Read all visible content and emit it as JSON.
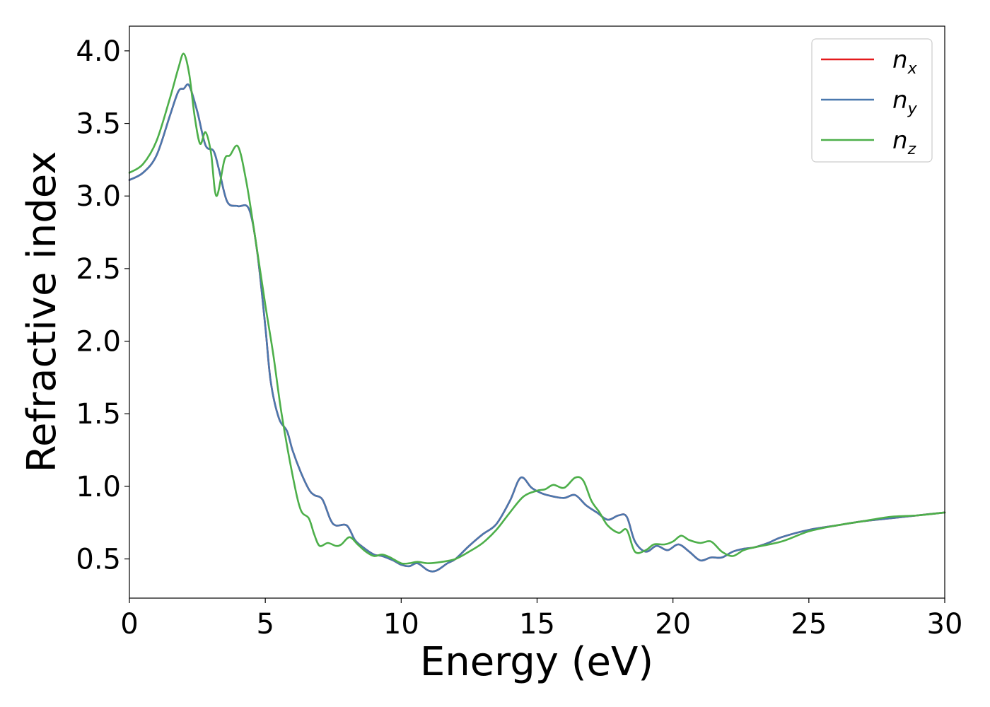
{
  "chart_data": {
    "type": "line",
    "xlabel": "Energy (eV)",
    "ylabel": "Refractive index",
    "xlim": [
      0,
      30
    ],
    "ylim": [
      0.23,
      4.17
    ],
    "xticks": [
      0,
      5,
      10,
      15,
      20,
      25,
      30
    ],
    "yticks": [
      0.5,
      1.0,
      1.5,
      2.0,
      2.5,
      3.0,
      3.5,
      4.0
    ],
    "xtick_labels": [
      "0",
      "5",
      "10",
      "15",
      "20",
      "25",
      "30"
    ],
    "ytick_labels": [
      "0.5",
      "1.0",
      "1.5",
      "2.0",
      "2.5",
      "3.0",
      "3.5",
      "4.0"
    ],
    "grid": false,
    "legend_position": "top-right",
    "series": [
      {
        "name": "n",
        "subscript": "x",
        "color": "#e41a1c",
        "x": [
          0,
          0.5,
          1.0,
          1.5,
          1.8,
          2.0,
          2.2,
          2.5,
          2.8,
          3.1,
          3.3,
          3.6,
          4.0,
          4.4,
          4.7,
          5.0,
          5.2,
          5.5,
          5.8,
          6.0,
          6.3,
          6.6,
          6.8,
          7.1,
          7.4,
          7.6,
          8.0,
          8.3,
          8.6,
          9.0,
          9.3,
          9.7,
          10.0,
          10.3,
          10.6,
          11.0,
          11.3,
          11.7,
          12.0,
          12.5,
          13.0,
          13.5,
          14.0,
          14.4,
          14.8,
          15.2,
          15.6,
          16.0,
          16.4,
          16.8,
          17.2,
          17.6,
          18.0,
          18.3,
          18.6,
          19.0,
          19.4,
          19.8,
          20.2,
          20.6,
          21.0,
          21.4,
          21.8,
          22.2,
          22.6,
          23.0,
          23.5,
          24.0,
          25.0,
          26.0,
          27.0,
          28.0,
          29.0,
          30.0
        ],
        "y": [
          3.11,
          3.16,
          3.28,
          3.56,
          3.72,
          3.74,
          3.76,
          3.58,
          3.35,
          3.31,
          3.18,
          2.96,
          2.93,
          2.91,
          2.62,
          2.1,
          1.72,
          1.47,
          1.38,
          1.25,
          1.1,
          0.98,
          0.94,
          0.91,
          0.77,
          0.73,
          0.73,
          0.63,
          0.58,
          0.53,
          0.52,
          0.49,
          0.46,
          0.45,
          0.47,
          0.42,
          0.42,
          0.47,
          0.5,
          0.59,
          0.67,
          0.74,
          0.9,
          1.06,
          0.99,
          0.95,
          0.93,
          0.92,
          0.94,
          0.87,
          0.82,
          0.77,
          0.8,
          0.79,
          0.62,
          0.55,
          0.59,
          0.56,
          0.6,
          0.55,
          0.49,
          0.51,
          0.51,
          0.55,
          0.57,
          0.58,
          0.61,
          0.65,
          0.7,
          0.73,
          0.76,
          0.78,
          0.8,
          0.82
        ]
      },
      {
        "name": "n",
        "subscript": "y",
        "color": "#4a78ae",
        "x": [
          0,
          0.5,
          1.0,
          1.5,
          1.8,
          2.0,
          2.2,
          2.5,
          2.8,
          3.1,
          3.3,
          3.6,
          4.0,
          4.4,
          4.7,
          5.0,
          5.2,
          5.5,
          5.8,
          6.0,
          6.3,
          6.6,
          6.8,
          7.1,
          7.4,
          7.6,
          8.0,
          8.3,
          8.6,
          9.0,
          9.3,
          9.7,
          10.0,
          10.3,
          10.6,
          11.0,
          11.3,
          11.7,
          12.0,
          12.5,
          13.0,
          13.5,
          14.0,
          14.4,
          14.8,
          15.2,
          15.6,
          16.0,
          16.4,
          16.8,
          17.2,
          17.6,
          18.0,
          18.3,
          18.6,
          19.0,
          19.4,
          19.8,
          20.2,
          20.6,
          21.0,
          21.4,
          21.8,
          22.2,
          22.6,
          23.0,
          23.5,
          24.0,
          25.0,
          26.0,
          27.0,
          28.0,
          29.0,
          30.0
        ],
        "y": [
          3.11,
          3.16,
          3.28,
          3.56,
          3.72,
          3.74,
          3.76,
          3.58,
          3.35,
          3.31,
          3.18,
          2.96,
          2.93,
          2.91,
          2.62,
          2.1,
          1.72,
          1.47,
          1.38,
          1.25,
          1.1,
          0.98,
          0.94,
          0.91,
          0.77,
          0.73,
          0.73,
          0.63,
          0.58,
          0.53,
          0.52,
          0.49,
          0.46,
          0.45,
          0.47,
          0.42,
          0.42,
          0.47,
          0.5,
          0.59,
          0.67,
          0.74,
          0.9,
          1.06,
          0.99,
          0.95,
          0.93,
          0.92,
          0.94,
          0.87,
          0.82,
          0.77,
          0.8,
          0.79,
          0.62,
          0.55,
          0.59,
          0.56,
          0.6,
          0.55,
          0.49,
          0.51,
          0.51,
          0.55,
          0.57,
          0.58,
          0.61,
          0.65,
          0.7,
          0.73,
          0.76,
          0.78,
          0.8,
          0.82
        ]
      },
      {
        "name": "n",
        "subscript": "z",
        "color": "#4daf4a",
        "x": [
          0,
          0.5,
          1.0,
          1.5,
          1.8,
          2.0,
          2.2,
          2.4,
          2.6,
          2.8,
          3.0,
          3.2,
          3.5,
          3.7,
          4.0,
          4.3,
          4.6,
          5.0,
          5.3,
          5.6,
          6.0,
          6.3,
          6.6,
          6.8,
          7.0,
          7.3,
          7.6,
          7.8,
          8.1,
          8.4,
          8.7,
          9.0,
          9.3,
          9.6,
          10.0,
          10.3,
          10.6,
          11.0,
          11.5,
          12.0,
          12.5,
          13.0,
          13.5,
          14.0,
          14.5,
          15.0,
          15.3,
          15.6,
          16.0,
          16.4,
          16.7,
          17.0,
          17.3,
          17.6,
          18.0,
          18.3,
          18.6,
          19.0,
          19.3,
          19.7,
          20.0,
          20.3,
          20.6,
          21.0,
          21.4,
          21.8,
          22.2,
          22.6,
          23.0,
          24.0,
          25.0,
          26.0,
          27.0,
          28.0,
          29.0,
          30.0
        ],
        "y": [
          3.16,
          3.22,
          3.38,
          3.68,
          3.88,
          3.98,
          3.84,
          3.55,
          3.36,
          3.44,
          3.3,
          3.0,
          3.25,
          3.28,
          3.34,
          3.1,
          2.75,
          2.25,
          1.9,
          1.5,
          1.08,
          0.84,
          0.78,
          0.67,
          0.59,
          0.61,
          0.59,
          0.6,
          0.65,
          0.6,
          0.55,
          0.52,
          0.53,
          0.51,
          0.47,
          0.47,
          0.48,
          0.47,
          0.48,
          0.5,
          0.55,
          0.61,
          0.7,
          0.82,
          0.93,
          0.97,
          0.98,
          1.01,
          0.99,
          1.06,
          1.04,
          0.9,
          0.82,
          0.73,
          0.68,
          0.7,
          0.55,
          0.56,
          0.6,
          0.6,
          0.62,
          0.66,
          0.63,
          0.61,
          0.62,
          0.55,
          0.52,
          0.56,
          0.58,
          0.62,
          0.69,
          0.73,
          0.76,
          0.79,
          0.8,
          0.82
        ]
      }
    ]
  }
}
